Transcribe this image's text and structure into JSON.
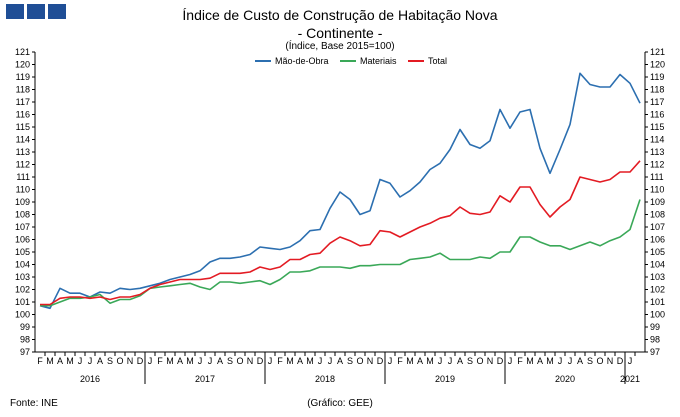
{
  "header": {
    "title": "Índice de Custo de Construção de Habitação Nova",
    "subtitle": "- Continente -",
    "note": "(Índice, Base 2015=100)"
  },
  "footer": {
    "source": "Fonte: INE",
    "credit": "(Gráfico: GEE)"
  },
  "chart_data": {
    "type": "line",
    "ylim": [
      97,
      121
    ],
    "y_ticks": [
      97,
      98,
      99,
      100,
      101,
      102,
      103,
      104,
      105,
      106,
      107,
      108,
      109,
      110,
      111,
      112,
      113,
      114,
      115,
      116,
      117,
      118,
      119,
      120,
      121
    ],
    "grid": false,
    "legend_position": "top-center",
    "month_labels": [
      "F",
      "M",
      "A",
      "M",
      "J",
      "J",
      "A",
      "S",
      "O",
      "N",
      "D",
      "J",
      "F",
      "M",
      "A",
      "M",
      "J",
      "J",
      "A",
      "S",
      "O",
      "N",
      "D",
      "J",
      "F",
      "M",
      "A",
      "M",
      "J",
      "J",
      "A",
      "S",
      "O",
      "N",
      "D",
      "J",
      "F",
      "M",
      "A",
      "M",
      "J",
      "J",
      "A",
      "S",
      "O",
      "N",
      "D",
      "J",
      "F",
      "M",
      "A",
      "M",
      "J",
      "J",
      "A",
      "S",
      "O",
      "N",
      "D",
      "J"
    ],
    "year_labels": [
      {
        "label": "2016",
        "center": 5
      },
      {
        "label": "2017",
        "center": 16.5
      },
      {
        "label": "2018",
        "center": 28.5
      },
      {
        "label": "2019",
        "center": 40.5
      },
      {
        "label": "2020",
        "center": 52.5
      },
      {
        "label": "2021",
        "center": 59
      }
    ],
    "year_dividers": [
      10.5,
      22.5,
      34.5,
      46.5,
      58.5
    ],
    "series": [
      {
        "name": "Mão-de-Obra",
        "color": "#2c6fb0",
        "values": [
          100.7,
          100.5,
          102.1,
          101.7,
          101.7,
          101.4,
          101.8,
          101.7,
          102.1,
          102.0,
          102.1,
          102.3,
          102.5,
          102.8,
          103.0,
          103.2,
          103.5,
          104.2,
          104.5,
          104.5,
          104.6,
          104.8,
          105.4,
          105.3,
          105.2,
          105.4,
          105.9,
          106.7,
          106.8,
          108.5,
          109.8,
          109.2,
          108.0,
          108.3,
          110.8,
          110.5,
          109.4,
          109.9,
          110.6,
          111.6,
          112.1,
          113.2,
          114.8,
          113.6,
          113.3,
          113.9,
          116.4,
          114.9,
          116.2,
          116.4,
          113.3,
          111.3,
          113.2,
          115.2,
          119.3,
          118.4,
          118.2,
          118.2,
          119.2,
          118.5,
          116.9
        ]
      },
      {
        "name": "Materiais",
        "color": "#3aa858",
        "values": [
          100.7,
          100.7,
          101.0,
          101.3,
          101.3,
          101.4,
          101.6,
          100.9,
          101.2,
          101.2,
          101.5,
          102.1,
          102.2,
          102.3,
          102.4,
          102.5,
          102.2,
          102.0,
          102.6,
          102.6,
          102.5,
          102.6,
          102.7,
          102.4,
          102.8,
          103.4,
          103.4,
          103.5,
          103.8,
          103.8,
          103.8,
          103.7,
          103.9,
          103.9,
          104.0,
          104.0,
          104.0,
          104.4,
          104.5,
          104.6,
          104.9,
          104.4,
          104.4,
          104.4,
          104.6,
          104.5,
          105.0,
          105.0,
          106.2,
          106.2,
          105.8,
          105.5,
          105.5,
          105.2,
          105.5,
          105.8,
          105.5,
          105.9,
          106.2,
          106.8,
          109.2
        ]
      },
      {
        "name": "Total",
        "color": "#e31b23",
        "values": [
          100.8,
          100.8,
          101.3,
          101.4,
          101.4,
          101.3,
          101.4,
          101.2,
          101.4,
          101.4,
          101.6,
          102.1,
          102.4,
          102.6,
          102.8,
          102.8,
          102.8,
          102.9,
          103.3,
          103.3,
          103.3,
          103.4,
          103.8,
          103.6,
          103.8,
          104.4,
          104.4,
          104.8,
          104.9,
          105.7,
          106.2,
          105.9,
          105.5,
          105.6,
          106.7,
          106.6,
          106.2,
          106.6,
          107.0,
          107.3,
          107.7,
          107.9,
          108.6,
          108.1,
          108.0,
          108.2,
          109.5,
          109.0,
          110.2,
          110.2,
          108.8,
          107.8,
          108.6,
          109.2,
          111.0,
          110.8,
          110.6,
          110.8,
          111.4,
          111.4,
          112.3
        ]
      }
    ]
  }
}
